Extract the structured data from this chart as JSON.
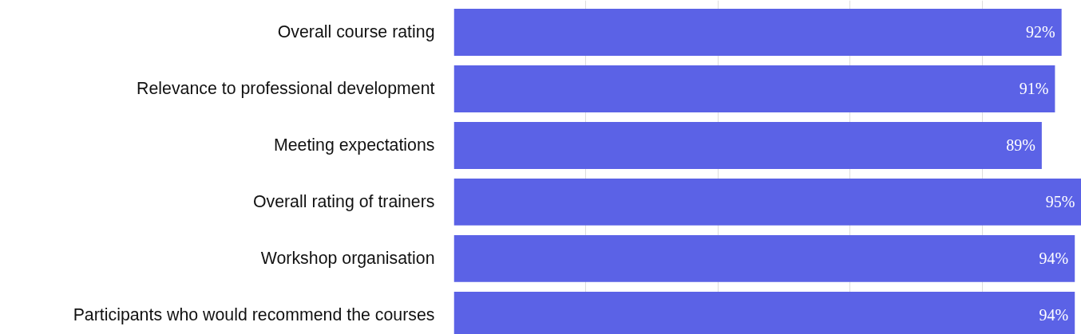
{
  "chart_data": {
    "type": "bar",
    "orientation": "horizontal",
    "categories": [
      "Overall course rating",
      "Relevance to professional development",
      "Meeting expectations",
      "Overall rating of trainers",
      "Workshop organisation",
      "Participants who would recommend the courses"
    ],
    "values": [
      92,
      91,
      89,
      95,
      94,
      94
    ],
    "value_labels": [
      "92%",
      "91%",
      "89%",
      "95%",
      "94%",
      "94%"
    ],
    "color": "#5b62e6",
    "xlim": [
      0,
      95
    ],
    "xticks": [
      {
        "value": 20,
        "label": null
      },
      {
        "value": 40,
        "label": null
      },
      {
        "value": 60,
        "label": null
      },
      {
        "value": 80,
        "label": null
      }
    ],
    "grid": "x",
    "tick_labels": "y"
  }
}
